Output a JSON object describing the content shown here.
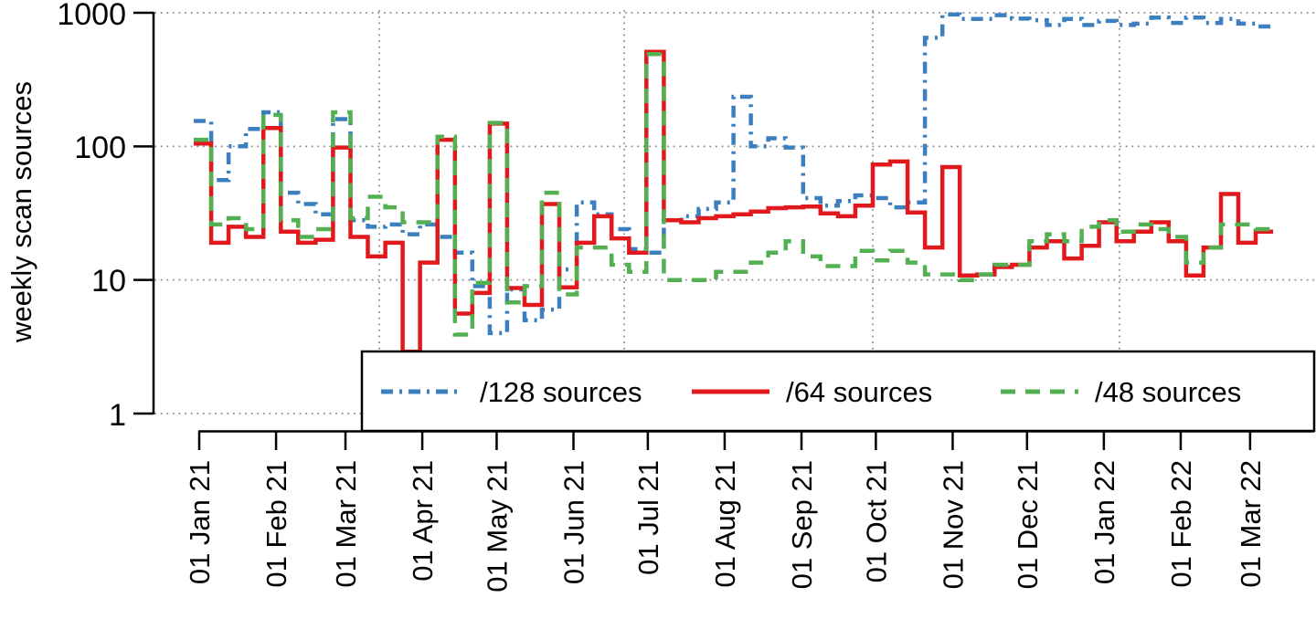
{
  "y_axis": {
    "label": "weekly scan sources",
    "tick_labels": [
      "1",
      "10",
      "100",
      "1000"
    ],
    "tick_values": [
      1,
      10,
      100,
      1000
    ]
  },
  "x_axis": {
    "tick_labels": [
      "01 Jan 21",
      "01 Feb 21",
      "01 Mar 21",
      "01 Apr 21",
      "01 May 21",
      "01 Jun 21",
      "01 Jul 21",
      "01 Aug 21",
      "01 Sep 21",
      "01 Oct 21",
      "01 Nov 21",
      "01 Dec 21",
      "01 Jan 22",
      "01 Feb 22",
      "01 Mar 22"
    ]
  },
  "legend": {
    "position": "bottom-center-box"
  },
  "chart_data": {
    "type": "line",
    "subtype": "step",
    "x_start": "2020-12-28",
    "x_interval": "weekly",
    "y_scale": "log10",
    "ylim": [
      1,
      1000
    ],
    "grid": true,
    "ylabel": "weekly scan sources",
    "x_tick_labels": [
      "01 Jan 21",
      "01 Feb 21",
      "01 Mar 21",
      "01 Apr 21",
      "01 May 21",
      "01 Jun 21",
      "01 Jul 21",
      "01 Aug 21",
      "01 Sep 21",
      "01 Oct 21",
      "01 Nov 21",
      "01 Dec 21",
      "01 Jan 22",
      "01 Feb 22",
      "01 Mar 22"
    ],
    "series": [
      {
        "name": "/128 sources",
        "color": "#3c7fbf",
        "style": "dashdot",
        "values": [
          155,
          56,
          100,
          135,
          180,
          45,
          37,
          31,
          160,
          28,
          25,
          26,
          22,
          26,
          21,
          16,
          9,
          4,
          8.5,
          5,
          6,
          12,
          38,
          31,
          24,
          17,
          16,
          28,
          30,
          34,
          38,
          235,
          100,
          115,
          98,
          41,
          36,
          39,
          43,
          41,
          35,
          38,
          650,
          970,
          900,
          900,
          960,
          905,
          880,
          810,
          900,
          810,
          870,
          810,
          830,
          920,
          840,
          920,
          840,
          900,
          830,
          790
        ]
      },
      {
        "name": "/64 sources",
        "color": "#e2191c",
        "style": "solid",
        "values": [
          105,
          19,
          25,
          21,
          137,
          23,
          19,
          20,
          98,
          21,
          15,
          19,
          2.9,
          13.5,
          112,
          5.6,
          8,
          148,
          8.7,
          6.5,
          37,
          8.8,
          19,
          30,
          20.5,
          16,
          510,
          28,
          27,
          29,
          30,
          31,
          32.5,
          34.5,
          35,
          35.5,
          31.5,
          30,
          36,
          73,
          77,
          32,
          17.5,
          70,
          10.8,
          11,
          12.5,
          13,
          17.5,
          19.5,
          14.5,
          18,
          27,
          19.5,
          23,
          27,
          19.5,
          10.8,
          17.5,
          44,
          19,
          23
        ]
      },
      {
        "name": "/48 sources",
        "color": "#53b052",
        "style": "dashed",
        "values": [
          112,
          26,
          29,
          24,
          172,
          28,
          21,
          24,
          180,
          29,
          42,
          35,
          27,
          27,
          118,
          3.9,
          9.5,
          150,
          6.8,
          9,
          45,
          7.8,
          17.5,
          17.5,
          13,
          11.5,
          490,
          10,
          10,
          10,
          11.5,
          11.5,
          13.5,
          16,
          19.5,
          15,
          12.7,
          12.7,
          16.5,
          14,
          16.5,
          13.5,
          11,
          11,
          10,
          11,
          13,
          13,
          19.5,
          22,
          19.5,
          25,
          28,
          23,
          26,
          24,
          21,
          13.5,
          17.5,
          26,
          26,
          24
        ]
      }
    ]
  }
}
